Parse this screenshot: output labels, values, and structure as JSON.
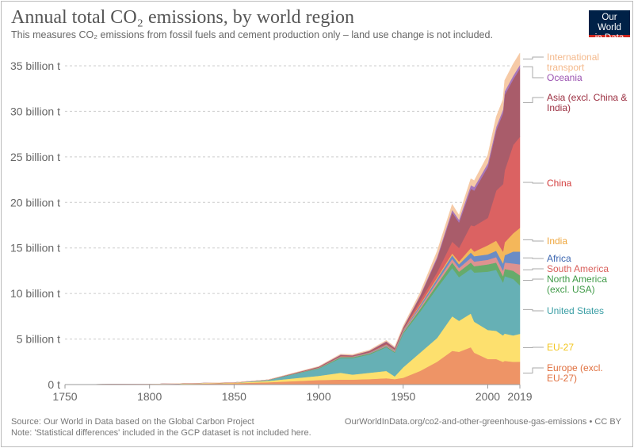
{
  "header": {
    "title": "Annual total CO₂ emissions, by world region",
    "subtitle": "This measures CO₂ emissions from fossil fuels and cement production only – land use change is not included.",
    "logo": "Our World in Data"
  },
  "footer": {
    "source": "Source: Our World in Data based on the Global Carbon Project",
    "note": "Note: 'Statistical differences' included in the GCP dataset is not included here.",
    "url": "OurWorldInData.org/co2-and-other-greenhouse-gas-emissions • CC BY"
  },
  "chart_data": {
    "type": "area",
    "stacked": true,
    "title": "Annual total CO₂ emissions, by world region",
    "xlim": [
      1750,
      2019
    ],
    "ylim": [
      0,
      35
    ],
    "x_ticks": [
      "1750",
      "1800",
      "1850",
      "1900",
      "1950",
      "2000",
      "2019"
    ],
    "y_ticks": [
      "0 t",
      "5 billion t",
      "10 billion t",
      "15 billion t",
      "20 billion t",
      "25 billion t",
      "30 billion t",
      "35 billion t"
    ],
    "y_tick_values": [
      0,
      5,
      10,
      15,
      20,
      25,
      30,
      35
    ],
    "grid": "horizontal dashed",
    "legend": "right, inline labels",
    "unit": "billion t",
    "x": [
      1750,
      1800,
      1850,
      1870,
      1900,
      1913,
      1920,
      1930,
      1940,
      1945,
      1950,
      1960,
      1970,
      1979,
      1983,
      1990,
      1992,
      2000,
      2005,
      2009,
      2010,
      2015,
      2019
    ],
    "series": [
      {
        "name": "Europe (excl. EU-27)",
        "color": "#ee9466",
        "label_color": "#e0703f",
        "values": [
          0.01,
          0.03,
          0.15,
          0.25,
          0.5,
          0.55,
          0.55,
          0.6,
          0.7,
          0.6,
          0.75,
          1.5,
          2.5,
          3.7,
          3.6,
          4.1,
          3.5,
          2.8,
          2.8,
          2.5,
          2.6,
          2.5,
          2.52
        ]
      },
      {
        "name": "EU-27",
        "color": "#fde06e",
        "label_color": "#f2c51c",
        "values": [
          0,
          0.01,
          0.05,
          0.15,
          0.46,
          0.75,
          0.55,
          0.7,
          0.8,
          0.3,
          1.15,
          2.0,
          2.6,
          3.8,
          3.4,
          3.7,
          3.4,
          3.2,
          3.1,
          2.9,
          3.0,
          2.9,
          3.05
        ]
      },
      {
        "name": "United States",
        "color": "#66b0b5",
        "label_color": "#3a9ea5",
        "values": [
          0,
          0.005,
          0.02,
          0.1,
          0.79,
          1.6,
          1.8,
          2.0,
          2.6,
          2.6,
          3.7,
          4.5,
          5.5,
          5.3,
          4.8,
          4.9,
          5.4,
          6.4,
          6.7,
          5.8,
          6.3,
          6.2,
          5.33
        ]
      },
      {
        "name": "North America (excl. USA)",
        "color": "#66ab6b",
        "label_color": "#3f9a47",
        "values": [
          0,
          0,
          0,
          0.01,
          0.05,
          0.1,
          0.1,
          0.1,
          0.1,
          0.1,
          0.15,
          0.3,
          0.4,
          0.6,
          0.6,
          0.7,
          0.7,
          0.8,
          0.8,
          0.7,
          0.8,
          0.9,
          1.1
        ]
      },
      {
        "name": "South America",
        "color": "#de9290",
        "label_color": "#d9605c",
        "values": [
          0,
          0,
          0,
          0,
          0.02,
          0.05,
          0.04,
          0.05,
          0.08,
          0.1,
          0.1,
          0.2,
          0.3,
          0.4,
          0.4,
          0.5,
          0.5,
          0.5,
          0.6,
          0.6,
          0.7,
          0.8,
          1.2
        ]
      },
      {
        "name": "Africa",
        "color": "#6a8cc6",
        "label_color": "#3c66b0",
        "values": [
          0,
          0,
          0,
          0,
          0.02,
          0.03,
          0.03,
          0.05,
          0.07,
          0.08,
          0.1,
          0.2,
          0.3,
          0.4,
          0.4,
          0.6,
          0.6,
          0.6,
          0.7,
          0.8,
          0.8,
          1.3,
          1.4
        ]
      },
      {
        "name": "India",
        "color": "#f4b75a",
        "label_color": "#eea53a",
        "values": [
          0,
          0,
          0,
          0,
          0.02,
          0.02,
          0.02,
          0.02,
          0.05,
          0.04,
          0.05,
          0.1,
          0.15,
          0.2,
          0.3,
          0.5,
          0.5,
          1.0,
          1.1,
          1.3,
          1.4,
          2.0,
          2.6
        ]
      },
      {
        "name": "China",
        "color": "#db6262",
        "label_color": "#d33e3e",
        "values": [
          0,
          0,
          0,
          0,
          0.01,
          0.02,
          0.01,
          0.03,
          0.05,
          0.04,
          0.05,
          0.4,
          0.55,
          1.3,
          1.5,
          2.5,
          2.8,
          3.0,
          5.5,
          7.4,
          7.9,
          9.7,
          10.0
        ]
      },
      {
        "name": "Asia (excl. China & India)",
        "color": "#a95c6a",
        "label_color": "#9b2e40",
        "values": [
          0,
          0,
          0.005,
          0.01,
          0.08,
          0.13,
          0.1,
          0.15,
          0.25,
          0.14,
          0.2,
          0.5,
          1.5,
          3.2,
          2.8,
          4.0,
          3.9,
          5.6,
          6.6,
          7.8,
          8.3,
          7.2,
          7.5
        ]
      },
      {
        "name": "Oceania",
        "color": "#a877bb",
        "label_color": "#9a52b0",
        "values": [
          0,
          0,
          0,
          0,
          0.02,
          0.03,
          0.02,
          0.02,
          0.05,
          0.05,
          0.05,
          0.1,
          0.2,
          0.3,
          0.3,
          0.4,
          0.4,
          0.4,
          0.4,
          0.4,
          0.4,
          0.4,
          0.4
        ]
      },
      {
        "name": "International transport",
        "color": "#f6caa6",
        "label_color": "#f4b98c",
        "values": [
          0,
          0,
          0,
          0.01,
          0.03,
          0.07,
          0.08,
          0.08,
          0.1,
          0.1,
          0.15,
          0.3,
          0.6,
          0.6,
          0.5,
          0.7,
          0.7,
          0.9,
          1.1,
          1.1,
          1.2,
          1.3,
          1.3
        ]
      }
    ],
    "labels": [
      [
        "International",
        "transport"
      ],
      [
        "Oceania"
      ],
      [
        "Asia (excl. China &",
        "India)"
      ],
      [
        "China"
      ],
      [
        "India"
      ],
      [
        "Africa"
      ],
      [
        "South America"
      ],
      [
        "North America",
        "(excl. USA)"
      ],
      [
        "United States"
      ],
      [
        "EU-27"
      ],
      [
        "Europe (excl.",
        "EU-27)"
      ]
    ]
  }
}
